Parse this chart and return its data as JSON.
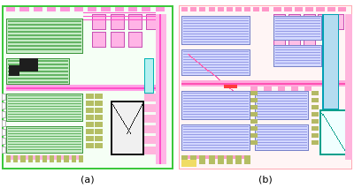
{
  "fig_width": 4.0,
  "fig_height": 2.13,
  "dpi": 100,
  "background_color": "#ffffff",
  "label_a": "(a)",
  "label_b": "(b)",
  "label_fontsize": 8,
  "panel_a_bg": "#f5fff5",
  "panel_a_border": "#33bb33",
  "panel_b_bg": "#fff5f5",
  "panel_b_border": "#ffbbbb"
}
